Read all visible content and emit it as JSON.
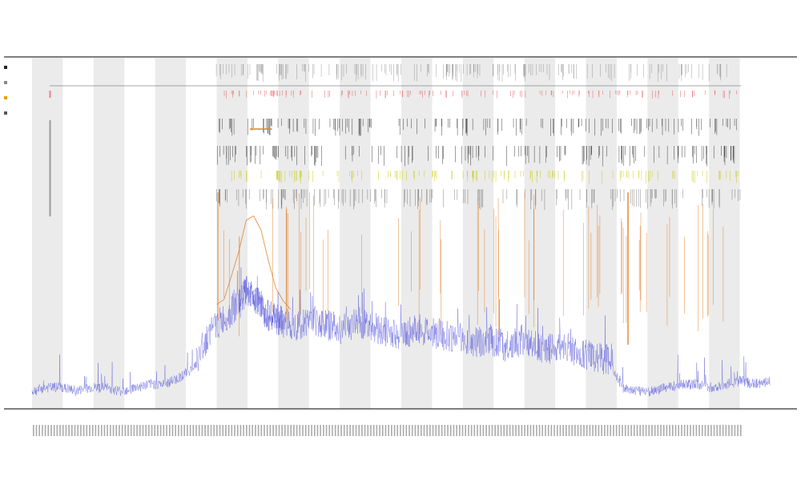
{
  "chart_data": {
    "type": "line",
    "title": "",
    "subtitle_lines": [
      "",
      ""
    ],
    "xlabel": "",
    "ylabel": "",
    "grid": false,
    "legend_position": "top-left",
    "legend_entries": [
      {
        "label": "",
        "color": "#222222"
      },
      {
        "label": "",
        "color": "#888888"
      },
      {
        "label": "",
        "color": "#e8a000"
      },
      {
        "label": "",
        "color": "#555555"
      }
    ],
    "track_labels": [
      "",
      ""
    ],
    "x_range": [
      0,
      100
    ],
    "y_range": [
      0,
      100
    ],
    "band_count": 24,
    "series": [
      {
        "color": "#5555dd",
        "x": [
          0,
          2,
          4,
          6,
          8,
          10,
          12,
          14,
          16,
          18,
          20,
          22,
          24,
          26,
          28,
          29,
          30,
          31,
          32,
          33,
          34,
          36,
          38,
          40,
          42,
          44,
          46,
          48,
          50,
          52,
          54,
          56,
          58,
          60,
          62,
          64,
          66,
          68,
          70,
          72,
          74,
          76,
          78,
          80,
          82,
          84,
          86,
          88,
          90,
          92,
          94,
          96,
          98,
          100
        ],
        "y": [
          4,
          5,
          5,
          4,
          5,
          5,
          4,
          5,
          6,
          6,
          8,
          11,
          21,
          25,
          29,
          33,
          32,
          28,
          26,
          25,
          24,
          23,
          25,
          23,
          22,
          24,
          23,
          21,
          20,
          22,
          21,
          20,
          19,
          18,
          19,
          17,
          18,
          17,
          16,
          17,
          15,
          14,
          13,
          5,
          4,
          4,
          5,
          6,
          6,
          5,
          6,
          7,
          6,
          7
        ]
      },
      {
        "color": "#e07a1f",
        "x": [
          25,
          26,
          27,
          28,
          29,
          30,
          31,
          32,
          33,
          34,
          35
        ],
        "y": [
          28,
          30,
          38,
          46,
          53,
          55,
          50,
          42,
          35,
          30,
          28
        ]
      }
    ],
    "highlight_segment": {
      "color": "#e0801f",
      "x": [
        29.5,
        32.5
      ],
      "y": 80
    }
  }
}
